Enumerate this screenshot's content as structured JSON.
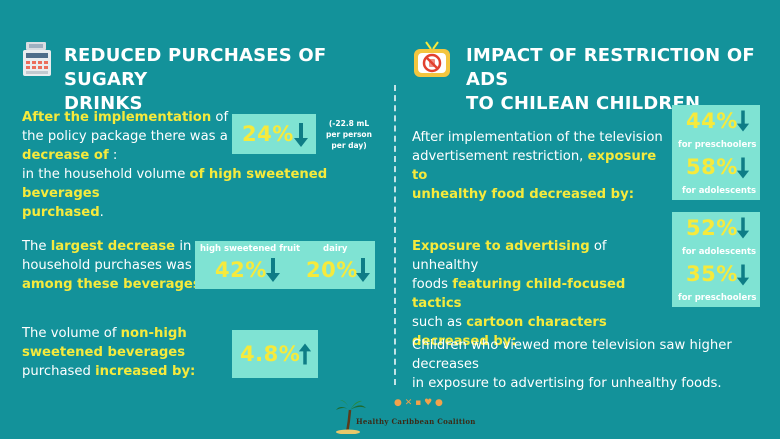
{
  "colors": {
    "background": "#13929a",
    "accent_yellow": "#f6ea3c",
    "stat_bg": "#7fe3d3",
    "arrow": "#0e7d86"
  },
  "left": {
    "title_line1": "REDUCED PURCHASES OF SUGARY",
    "title_line2": "DRINKS",
    "icon": "cash-register-icon",
    "block1": {
      "p1_hl1": "After the implementation",
      "p1_t1": " of",
      "p1_t2": "the policy package there was a",
      "p1_hl2": "decrease of",
      "p1_t3": " :",
      "p1_t4": "in the household volume ",
      "p1_hl3": "of high sweetened beverages",
      "p1_hl4": "purchased",
      "p1_t5": ".",
      "stat_value": "24%",
      "stat_note_1": "(-22.8 mL",
      "stat_note_2": "per person",
      "stat_note_3": "per day)"
    },
    "block2": {
      "t1": "The ",
      "hl1": "largest decrease",
      "t2": " in",
      "t3": "household purchases was",
      "hl2": "among these beverages:",
      "cat1_label": "high sweetened fruit",
      "cat1_value": "42%",
      "cat2_label": "dairy",
      "cat2_value": "20%"
    },
    "block3": {
      "t1": "The volume of ",
      "hl1": "non-high",
      "hl2": "sweetened beverages",
      "t2": "purchased ",
      "hl3": "increased by:",
      "stat_value": "4.8%"
    }
  },
  "right": {
    "title_line1": "IMPACT OF RESTRICTION OF ADS",
    "title_line2": "TO CHILEAN CHILDREN",
    "icon": "tv-no-sugar-icon",
    "block1": {
      "t1": "After implementation of the television",
      "t2": "advertisement restriction, ",
      "hl1": "exposure to",
      "hl2": "unhealthy food decreased by:",
      "stat1_value": "44%",
      "stat1_label": "for preschoolers",
      "stat2_value": "58%",
      "stat2_label": "for adolescents"
    },
    "block2": {
      "hl1": "Exposure to advertising",
      "t1": " of unhealthy",
      "t2": "foods ",
      "hl2": "featuring child-focused tactics",
      "t3": "such as ",
      "hl3": "cartoon characters decreased by:",
      "stat1_value": "52%",
      "stat1_label": "for adolescents",
      "stat2_value": "35%",
      "stat2_label": "for preschoolers"
    },
    "block3": {
      "t1": "Children who viewed more television saw higher decreases",
      "t2": "in exposure to advertising for unhealthy foods."
    }
  },
  "footer": {
    "logo_text": "Healthy Caribbean Coalition",
    "logo_icon": "palm-tree-icon"
  }
}
